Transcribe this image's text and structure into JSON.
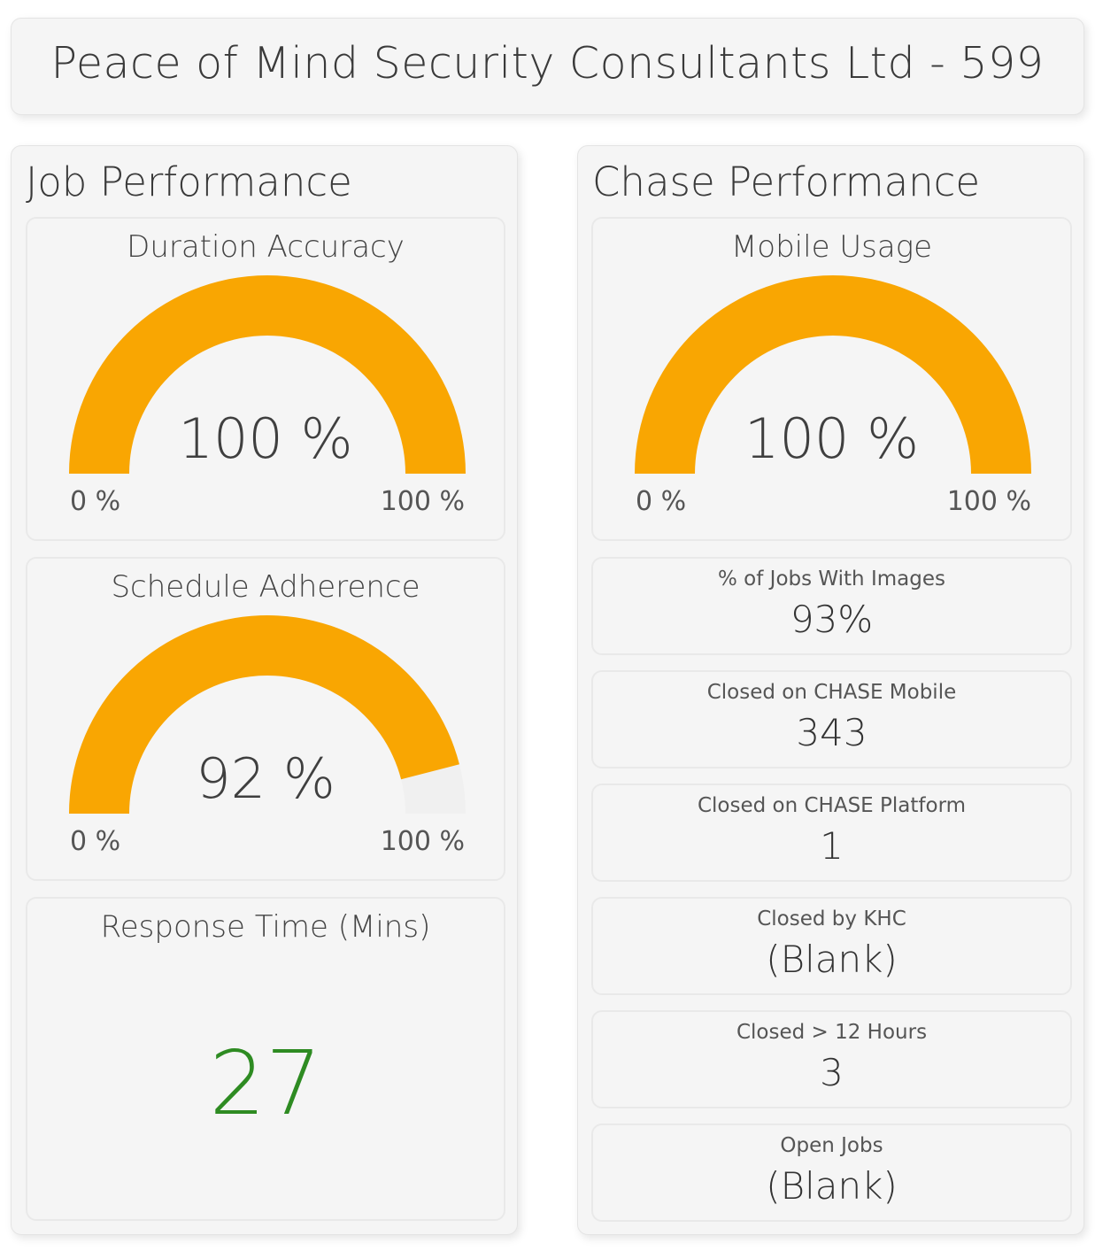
{
  "header": {
    "title": "Peace of Mind Security Consultants Ltd - 599"
  },
  "colors": {
    "gauge_fill": "#f9a602",
    "gauge_track": "#f0f0f0",
    "response_value": "#2e8b22"
  },
  "job_performance": {
    "title": "Job Performance",
    "duration_accuracy": {
      "title": "Duration Accuracy",
      "value": 100,
      "value_label": "100 %",
      "min_label": "0 %",
      "max_label": "100 %"
    },
    "schedule_adherence": {
      "title": "Schedule Adherence",
      "value": 92,
      "value_label": "92 %",
      "min_label": "0 %",
      "max_label": "100 %"
    },
    "response_time": {
      "title": "Response Time (Mins)",
      "value": "27"
    }
  },
  "chase_performance": {
    "title": "Chase Performance",
    "mobile_usage": {
      "title": "Mobile Usage",
      "value": 100,
      "value_label": "100 %",
      "min_label": "0 %",
      "max_label": "100 %"
    },
    "kpis": [
      {
        "title": "% of Jobs With Images",
        "value": "93%"
      },
      {
        "title": "Closed on CHASE Mobile",
        "value": "343"
      },
      {
        "title": "Closed on CHASE Platform",
        "value": "1"
      },
      {
        "title": "Closed by KHC",
        "value": "(Blank)"
      },
      {
        "title": "Closed > 12 Hours",
        "value": "3"
      },
      {
        "title": "Open Jobs",
        "value": "(Blank)"
      }
    ]
  }
}
